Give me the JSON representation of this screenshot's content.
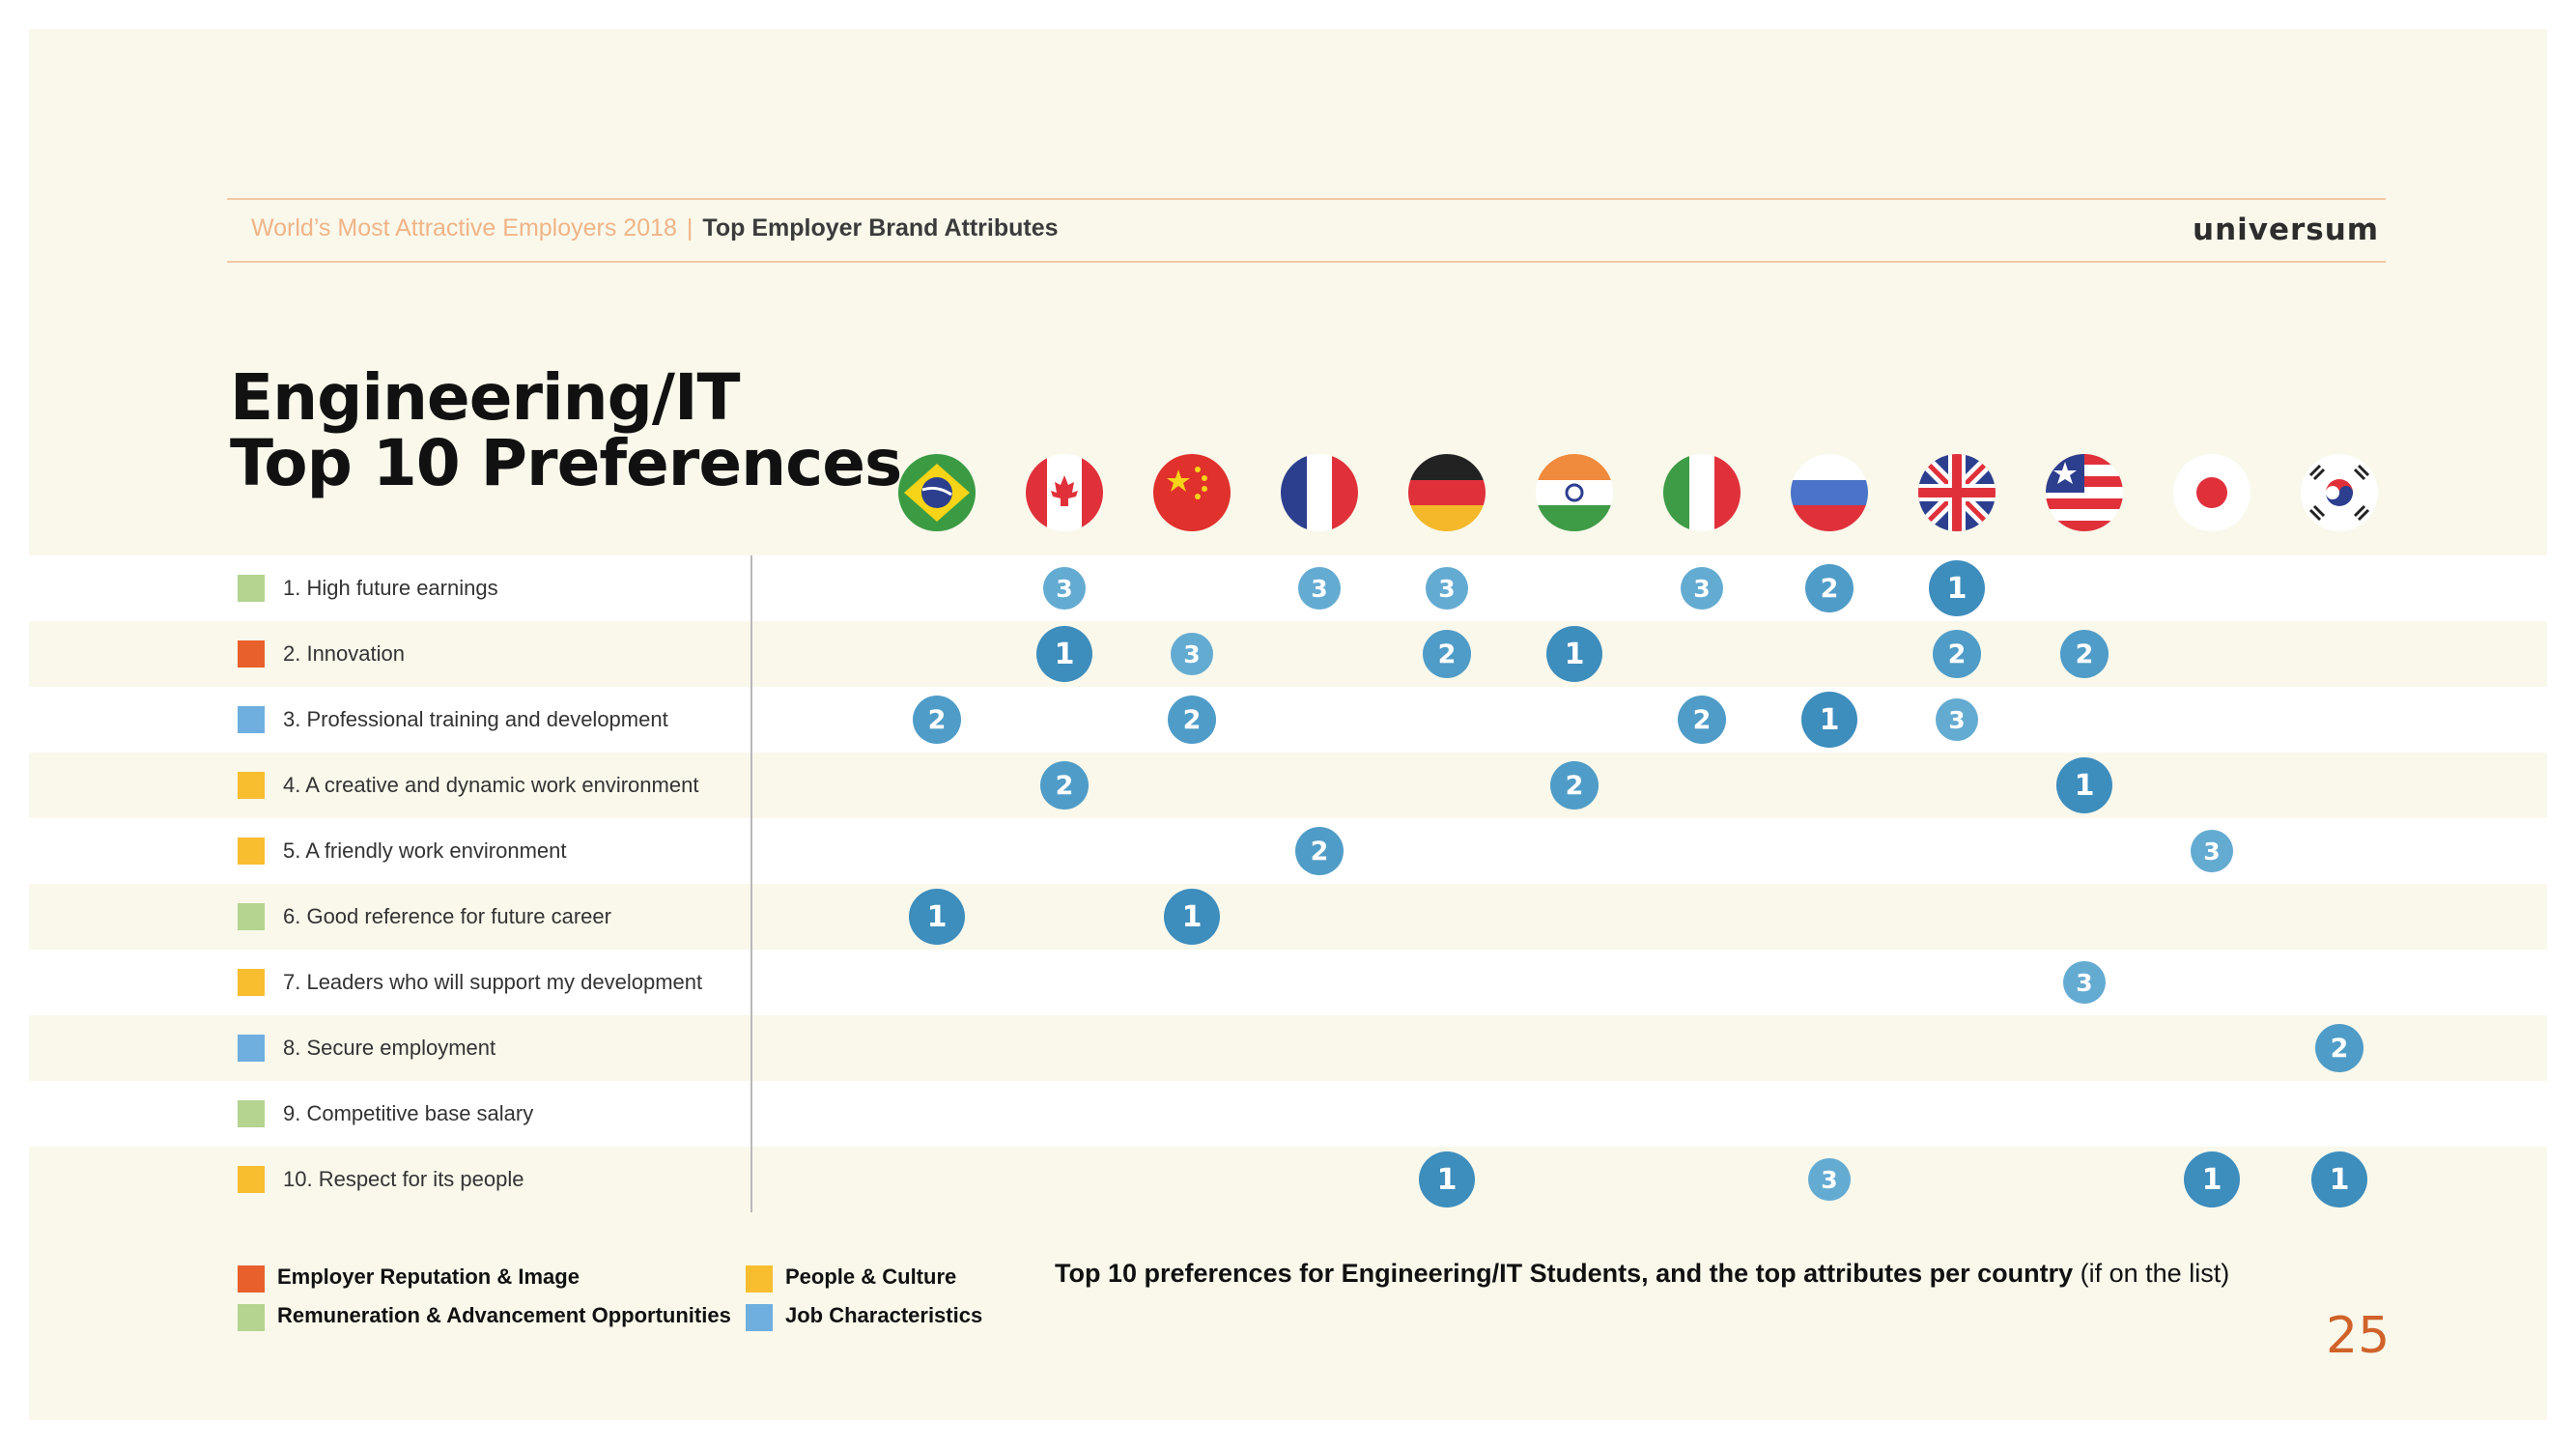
{
  "header": {
    "report_title": "World’s Most Attractive Employers 2018",
    "separator": "|",
    "section_title": "Top Employer Brand Attributes",
    "logo_text": "universum"
  },
  "title": {
    "line1": "Engineering/IT",
    "line2": "Top 10 Preferences"
  },
  "colors": {
    "employer_reputation": "#e8612c",
    "remuneration": "#b4d48f",
    "people_culture": "#f8be30",
    "job_characteristics": "#6eafe0",
    "badge_rank1": "#3d8dbd",
    "badge_rank2": "#4f9cc8",
    "badge_rank3": "#64abd2"
  },
  "legend": [
    {
      "label": "Employer Reputation & Image",
      "color": "#e8612c"
    },
    {
      "label": "Remuneration & Advancement Opportunities",
      "color": "#b4d48f"
    },
    {
      "label": "People & Culture",
      "color": "#f8be30"
    },
    {
      "label": "Job Characteristics",
      "color": "#6eafe0"
    }
  ],
  "caption": {
    "bold": "Top 10 preferences for Engineering/IT Students, and the top attributes per country",
    "normal": " (if on the list)"
  },
  "page_number": "25",
  "chart_data": {
    "type": "table",
    "columns": [
      {
        "flag": "brazil-flag"
      },
      {
        "flag": "canada-flag"
      },
      {
        "flag": "china-flag"
      },
      {
        "flag": "france-flag"
      },
      {
        "flag": "germany-flag"
      },
      {
        "flag": "india-flag"
      },
      {
        "flag": "italy-flag"
      },
      {
        "flag": "russia-flag"
      },
      {
        "flag": "uk-flag"
      },
      {
        "flag": "usa-flag"
      },
      {
        "flag": "japan-flag"
      },
      {
        "flag": "south-korea-flag"
      }
    ],
    "rows": [
      {
        "label": "1. High future earnings",
        "category": "remuneration",
        "ranks": [
          null,
          3,
          null,
          3,
          3,
          null,
          3,
          2,
          1,
          null,
          null,
          null
        ]
      },
      {
        "label": "2. Innovation",
        "category": "employer_reputation",
        "ranks": [
          null,
          1,
          3,
          null,
          2,
          1,
          null,
          null,
          2,
          2,
          null,
          null
        ]
      },
      {
        "label": "3. Professional training and development",
        "category": "job_characteristics",
        "ranks": [
          2,
          null,
          2,
          null,
          null,
          null,
          2,
          1,
          3,
          null,
          null,
          null
        ]
      },
      {
        "label": "4. A creative and dynamic work environment",
        "category": "people_culture",
        "ranks": [
          null,
          2,
          null,
          null,
          null,
          2,
          null,
          null,
          null,
          1,
          null,
          null
        ]
      },
      {
        "label": "5. A friendly work environment",
        "category": "people_culture",
        "ranks": [
          null,
          null,
          null,
          2,
          null,
          null,
          null,
          null,
          null,
          null,
          3,
          null
        ]
      },
      {
        "label": "6. Good reference for future career",
        "category": "remuneration",
        "ranks": [
          1,
          null,
          1,
          null,
          null,
          null,
          null,
          null,
          null,
          null,
          null,
          null
        ]
      },
      {
        "label": "7. Leaders who will support my development",
        "category": "people_culture",
        "ranks": [
          null,
          null,
          null,
          null,
          null,
          null,
          null,
          null,
          null,
          3,
          null,
          null
        ]
      },
      {
        "label": "8. Secure employment",
        "category": "job_characteristics",
        "ranks": [
          null,
          null,
          null,
          null,
          null,
          null,
          null,
          null,
          null,
          null,
          null,
          2
        ]
      },
      {
        "label": "9. Competitive base salary",
        "category": "remuneration",
        "ranks": [
          null,
          null,
          null,
          null,
          null,
          null,
          null,
          null,
          null,
          null,
          null,
          null
        ]
      },
      {
        "label": "10. Respect for its people",
        "category": "people_culture",
        "ranks": [
          null,
          null,
          null,
          null,
          1,
          null,
          null,
          3,
          null,
          null,
          1,
          1
        ]
      }
    ]
  }
}
